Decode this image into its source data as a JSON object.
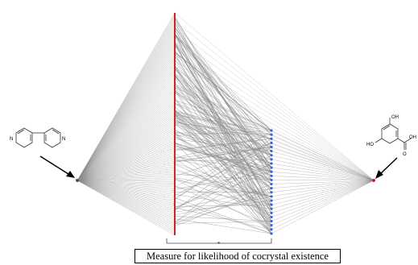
{
  "caption": "Measure for likelihood of cocrystal existence",
  "colors": {
    "axis_red": "#d42020",
    "node_blue": "#3a5fd0",
    "edge_gray": "#8a8a8a",
    "text": "#000000"
  },
  "molecules": {
    "left": {
      "name": "4,4'-bipyridine",
      "atom_labels": [
        "N",
        "N"
      ]
    },
    "right": {
      "name": "2,5-dihydroxybenzoic acid",
      "atom_labels": [
        "OH",
        "HO",
        "O",
        "OH"
      ]
    }
  },
  "bracket_marker": "*"
}
